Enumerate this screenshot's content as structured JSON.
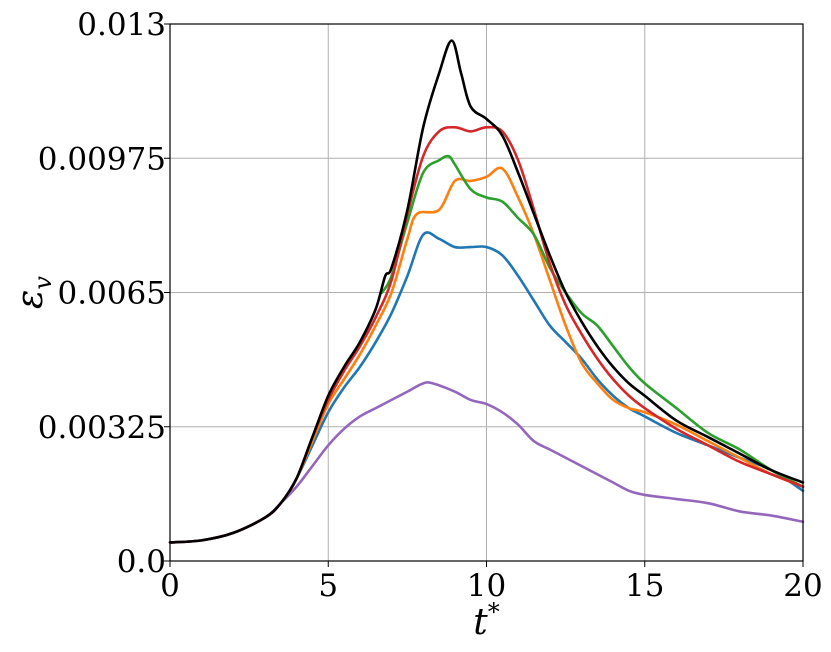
{
  "chart_data": {
    "type": "line",
    "title": "",
    "xlabel": "t*",
    "ylabel": "εv",
    "xlim": [
      0,
      20
    ],
    "ylim": [
      0,
      0.013
    ],
    "xticks": [
      0,
      5,
      10,
      15,
      20
    ],
    "xtick_labels": [
      "0",
      "5",
      "10",
      "15",
      "20"
    ],
    "yticks": [
      0,
      0.00325,
      0.0065,
      0.00975,
      0.013
    ],
    "ytick_labels": [
      "0.0",
      "0.00325",
      "0.0065",
      "0.00975",
      "0.013"
    ],
    "grid": true,
    "legend": "none",
    "series": [
      {
        "color": "#1f77b4",
        "x": [
          0,
          1,
          2,
          3,
          3.5,
          4,
          4.5,
          5,
          5.5,
          6,
          6.5,
          7,
          7.5,
          8,
          8.5,
          9,
          9.5,
          10,
          10.5,
          11,
          11.5,
          12,
          12.5,
          13,
          13.5,
          14,
          14.5,
          15,
          16,
          17,
          18,
          19,
          20
        ],
        "y": [
          0.00045,
          0.0005,
          0.00068,
          0.00105,
          0.0014,
          0.002,
          0.0028,
          0.0036,
          0.0042,
          0.0047,
          0.0053,
          0.006,
          0.0069,
          0.0079,
          0.0078,
          0.0076,
          0.0076,
          0.0076,
          0.0074,
          0.0069,
          0.0063,
          0.0057,
          0.0053,
          0.0049,
          0.0044,
          0.004,
          0.0037,
          0.0035,
          0.0031,
          0.0028,
          0.0025,
          0.0022,
          0.0017
        ]
      },
      {
        "color": "#ff7f0e",
        "x": [
          0,
          1,
          2,
          3,
          3.5,
          4,
          4.5,
          5,
          5.5,
          6,
          6.5,
          7,
          7.5,
          7.8,
          8.5,
          9,
          9.5,
          10,
          10.5,
          11,
          11.5,
          12,
          12.5,
          13,
          13.5,
          14,
          14.5,
          15,
          16,
          17,
          18,
          19,
          20
        ],
        "y": [
          0.00045,
          0.0005,
          0.00068,
          0.00105,
          0.0014,
          0.002,
          0.0029,
          0.0038,
          0.0044,
          0.005,
          0.0057,
          0.0065,
          0.0078,
          0.0084,
          0.0085,
          0.0092,
          0.0092,
          0.0093,
          0.0095,
          0.0088,
          0.0079,
          0.0068,
          0.0057,
          0.0048,
          0.0043,
          0.0039,
          0.0037,
          0.0036,
          0.0033,
          0.0029,
          0.0025,
          0.0021,
          0.0018
        ]
      },
      {
        "color": "#2ca02c",
        "x": [
          6.7,
          7,
          7.5,
          8,
          8.5,
          8.8,
          9,
          9.5,
          10,
          10.5,
          11,
          11.5,
          12,
          12.5,
          13,
          13.5,
          14,
          14.5,
          15,
          16,
          17,
          18,
          19,
          20
        ],
        "y": [
          0.0065,
          0.0069,
          0.0082,
          0.0094,
          0.0097,
          0.0098,
          0.0096,
          0.009,
          0.0088,
          0.0087,
          0.0083,
          0.0079,
          0.0071,
          0.0065,
          0.006,
          0.0057,
          0.0052,
          0.0047,
          0.0043,
          0.0037,
          0.0031,
          0.0027,
          0.0022,
          0.0018
        ]
      },
      {
        "color": "#d62728",
        "x": [
          0,
          1,
          2,
          3,
          3.5,
          4,
          4.5,
          5,
          5.5,
          6,
          6.5,
          7,
          7.5,
          8,
          8.5,
          9,
          9.5,
          10,
          10.5,
          11,
          11.5,
          12,
          12.5,
          13,
          13.5,
          14,
          14.5,
          15,
          16,
          17,
          18,
          19,
          20
        ],
        "y": [
          0.00045,
          0.0005,
          0.00068,
          0.00105,
          0.0014,
          0.002,
          0.003,
          0.0039,
          0.0046,
          0.0052,
          0.0059,
          0.0068,
          0.0084,
          0.0098,
          0.0104,
          0.0105,
          0.0104,
          0.0105,
          0.0104,
          0.0097,
          0.0085,
          0.0072,
          0.0062,
          0.0055,
          0.0049,
          0.0044,
          0.004,
          0.0037,
          0.0032,
          0.0028,
          0.0024,
          0.0021,
          0.0018
        ]
      },
      {
        "color": "#9467bd",
        "x": [
          0,
          1,
          2,
          3,
          3.5,
          4,
          4.5,
          5,
          5.5,
          6,
          6.5,
          7,
          7.5,
          8,
          8.3,
          9,
          9.5,
          10,
          10.5,
          11,
          11.5,
          12,
          12.5,
          13,
          13.5,
          14,
          14.5,
          15,
          16,
          17,
          18,
          19,
          20
        ],
        "y": [
          0.00045,
          0.0005,
          0.00068,
          0.00105,
          0.0014,
          0.0018,
          0.0023,
          0.0028,
          0.0032,
          0.0035,
          0.0037,
          0.0039,
          0.0041,
          0.0043,
          0.0043,
          0.0041,
          0.0039,
          0.0038,
          0.0036,
          0.0033,
          0.0029,
          0.0027,
          0.0025,
          0.0023,
          0.0021,
          0.0019,
          0.0017,
          0.0016,
          0.0015,
          0.0014,
          0.0012,
          0.0011,
          0.00095
        ]
      },
      {
        "color": "#000000",
        "x": [
          0,
          1,
          2,
          3,
          3.5,
          4,
          4.5,
          5,
          5.5,
          6,
          6.5,
          6.8,
          7,
          7.5,
          8,
          8.5,
          8.9,
          9.2,
          9.5,
          10,
          10.5,
          11,
          11.5,
          12,
          12.5,
          13,
          13.5,
          14,
          14.5,
          15,
          16,
          17,
          18,
          19,
          20
        ],
        "y": [
          0.00045,
          0.0005,
          0.00068,
          0.00105,
          0.0014,
          0.002,
          0.003,
          0.004,
          0.0047,
          0.0053,
          0.0061,
          0.0069,
          0.0071,
          0.0085,
          0.0105,
          0.0118,
          0.0126,
          0.0118,
          0.011,
          0.0107,
          0.0103,
          0.0094,
          0.0084,
          0.0074,
          0.0065,
          0.0058,
          0.0052,
          0.0047,
          0.0043,
          0.004,
          0.0034,
          0.003,
          0.0026,
          0.0022,
          0.0019
        ]
      }
    ]
  }
}
